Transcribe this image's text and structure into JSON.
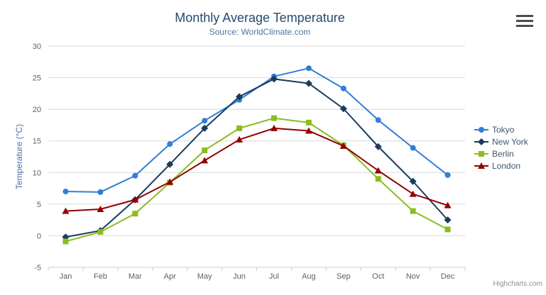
{
  "chart_data": {
    "type": "line",
    "title": "Monthly Average Temperature",
    "subtitle": "Source: WorldClimate.com",
    "categories": [
      "Jan",
      "Feb",
      "Mar",
      "Apr",
      "May",
      "Jun",
      "Jul",
      "Aug",
      "Sep",
      "Oct",
      "Nov",
      "Dec"
    ],
    "xlabel": "",
    "ylabel": "Temperature (°C)",
    "ylim": [
      -5,
      30
    ],
    "ytick_step": 5,
    "grid": true,
    "legend_position": "right",
    "series": [
      {
        "name": "Tokyo",
        "color": "#2f7ed8",
        "marker": "circle",
        "values": [
          7.0,
          6.9,
          9.5,
          14.5,
          18.2,
          21.5,
          25.2,
          26.5,
          23.3,
          18.3,
          13.9,
          9.6
        ]
      },
      {
        "name": "New York",
        "color": "#1a3b5c",
        "marker": "diamond",
        "values": [
          -0.2,
          0.8,
          5.7,
          11.3,
          17.0,
          22.0,
          24.8,
          24.1,
          20.1,
          14.1,
          8.6,
          2.5
        ]
      },
      {
        "name": "Berlin",
        "color": "#8bbc21",
        "marker": "square",
        "values": [
          -0.9,
          0.6,
          3.5,
          8.4,
          13.5,
          17.0,
          18.6,
          17.9,
          14.3,
          9.0,
          3.9,
          1.0
        ]
      },
      {
        "name": "London",
        "color": "#910000",
        "marker": "triangle",
        "values": [
          3.9,
          4.2,
          5.7,
          8.5,
          11.9,
          15.2,
          17.0,
          16.6,
          14.2,
          10.3,
          6.6,
          4.8
        ]
      }
    ]
  },
  "theme": {
    "background": "#ffffff",
    "title_color": "#274b6d",
    "subtitle_color": "#4d759e",
    "axis_label_color": "#606060",
    "yaxis_title_color": "#4572a7",
    "grid_color": "#d8d8d8",
    "axis_line_color": "#c0d0e0",
    "legend_text_color": "#3e576f",
    "credit_color": "#909090",
    "export_icon_color": "#4c4c4c"
  },
  "ui": {
    "credit": "Highcharts.com"
  }
}
